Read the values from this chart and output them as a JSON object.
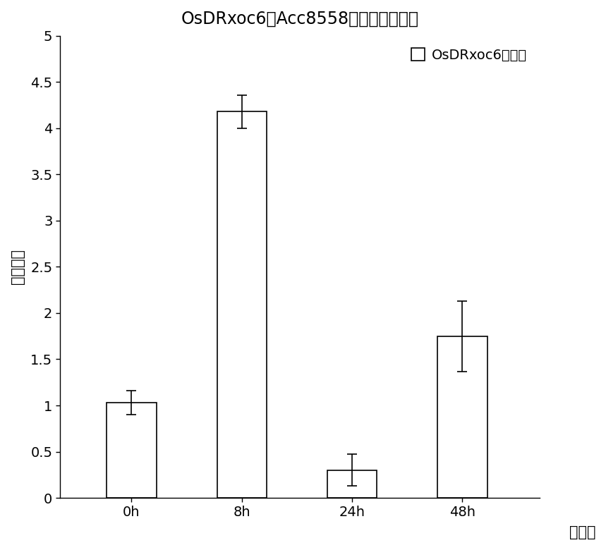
{
  "title": "OsDRxoc6在Acc8558中接种表达分析",
  "categories": [
    "0h",
    "8h",
    "24h",
    "48h"
  ],
  "values": [
    1.03,
    4.18,
    0.3,
    1.75
  ],
  "errors": [
    0.13,
    0.18,
    0.17,
    0.38
  ],
  "ylabel": "表达水平",
  "xlabel": "时间点",
  "legend_label": "OsDRxoc6表达量",
  "ylim": [
    0,
    5
  ],
  "yticks": [
    0,
    0.5,
    1,
    1.5,
    2,
    2.5,
    3,
    3.5,
    4,
    4.5,
    5
  ],
  "bar_color": "#ffffff",
  "bar_edgecolor": "#000000",
  "background_color": "#ffffff",
  "bar_width": 0.45,
  "title_fontsize": 17,
  "axis_label_fontsize": 15,
  "tick_fontsize": 14,
  "legend_fontsize": 14
}
